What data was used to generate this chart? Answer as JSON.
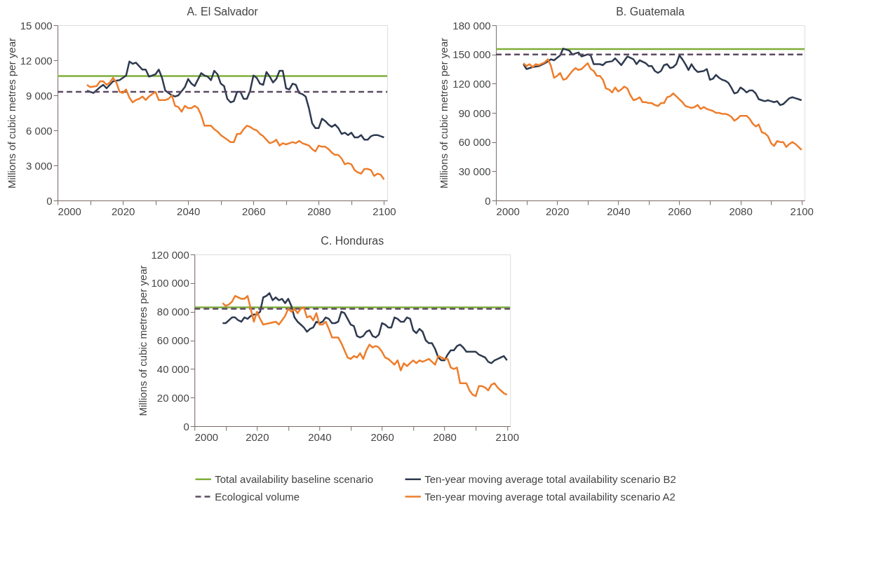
{
  "chart_data": [
    {
      "type": "line",
      "title": "A. El Salvador",
      "ylabel": "Millions of cubic metres per year",
      "legend": false,
      "grid": false,
      "xlim": [
        2000,
        2101
      ],
      "xticks": [
        2000,
        {
          "value": 2010,
          "label": null
        },
        2020,
        {
          "value": 2030,
          "label": null
        },
        2040,
        {
          "value": 2050,
          "label": null
        },
        2060,
        {
          "value": 2070,
          "label": null
        },
        2080,
        {
          "value": 2090,
          "label": null
        },
        2100
      ],
      "ylim": [
        0,
        15000
      ],
      "yticks": [
        0,
        {
          "value": 3000,
          "label": "3 000"
        },
        {
          "value": 6000,
          "label": "6 000"
        },
        {
          "value": 9000,
          "label": "9 000"
        },
        {
          "value": 12000,
          "label": "12 000"
        },
        {
          "value": 15000,
          "label": "15 000"
        }
      ],
      "series": [
        {
          "color": "#7fae3a",
          "line_style": "solid",
          "x": [
            2000,
            2101
          ],
          "values": [
            10650,
            10650
          ]
        },
        {
          "color": "#2e3a4f",
          "line_style": "solid",
          "x": [
            2009,
            2011,
            2013,
            2014,
            2015,
            2017,
            2019,
            2021,
            2022,
            2023,
            2024,
            2026,
            2027,
            2028,
            2030,
            2031,
            2032,
            2033,
            2035,
            2036,
            2037,
            2039,
            2040,
            2041,
            2042,
            2044,
            2045,
            2046,
            2047,
            2048,
            2049,
            2050,
            2051,
            2052,
            2053,
            2054,
            2055,
            2056,
            2057,
            2058,
            2059,
            2060,
            2061,
            2062,
            2063,
            2064,
            2065,
            2066,
            2067,
            2068,
            2069,
            2070,
            2071,
            2072,
            2073,
            2074,
            2075,
            2076,
            2077,
            2078,
            2079,
            2080,
            2081,
            2082,
            2083,
            2084,
            2085,
            2086,
            2087,
            2088,
            2089,
            2090,
            2091,
            2092,
            2093,
            2094,
            2095,
            2096,
            2097,
            2098,
            2099,
            2100
          ],
          "values": [
            9400,
            9200,
            9700,
            9900,
            9600,
            10200,
            10300,
            10700,
            11900,
            11700,
            11800,
            11200,
            11200,
            10600,
            10800,
            11200,
            10500,
            9400,
            9000,
            8900,
            9000,
            9700,
            10400,
            10000,
            9800,
            10900,
            10700,
            10600,
            10300,
            11100,
            10800,
            10000,
            9800,
            8700,
            8400,
            8500,
            9300,
            9300,
            8700,
            8700,
            9400,
            10700,
            10500,
            10000,
            9900,
            11000,
            10600,
            10100,
            10400,
            11100,
            11100,
            9600,
            9500,
            10000,
            9900,
            9200,
            9100,
            8900,
            7900,
            6600,
            6200,
            6200,
            7000,
            6800,
            6500,
            6300,
            6500,
            6200,
            5700,
            5800,
            5600,
            5800,
            5400,
            5400,
            5600,
            5200,
            5200,
            5500,
            5600,
            5600,
            5500,
            5400
          ]
        },
        {
          "color": "#5d4a63",
          "line_style": "dashed",
          "x": [
            2000,
            2101
          ],
          "values": [
            9300,
            9300
          ]
        },
        {
          "color": "#ee7d2b",
          "line_style": "solid",
          "x": [
            2009,
            2010,
            2012,
            2013,
            2014,
            2015,
            2016,
            2017,
            2018,
            2019,
            2020,
            2021,
            2022,
            2023,
            2024,
            2025,
            2026,
            2027,
            2028,
            2029,
            2030,
            2031,
            2032,
            2033,
            2034,
            2035,
            2036,
            2037,
            2038,
            2039,
            2040,
            2041,
            2042,
            2043,
            2044,
            2045,
            2046,
            2047,
            2048,
            2049,
            2050,
            2051,
            2052,
            2053,
            2054,
            2055,
            2056,
            2057,
            2058,
            2059,
            2060,
            2061,
            2062,
            2063,
            2064,
            2065,
            2066,
            2067,
            2068,
            2069,
            2070,
            2071,
            2072,
            2073,
            2074,
            2075,
            2076,
            2077,
            2078,
            2079,
            2080,
            2081,
            2082,
            2083,
            2084,
            2085,
            2086,
            2087,
            2088,
            2089,
            2090,
            2091,
            2092,
            2093,
            2094,
            2095,
            2096,
            2097,
            2098,
            2099,
            2100
          ],
          "values": [
            9900,
            9700,
            9800,
            10200,
            10200,
            9900,
            10100,
            10500,
            10100,
            9300,
            9200,
            9500,
            8800,
            8400,
            8600,
            8700,
            8900,
            8600,
            8900,
            9100,
            9300,
            8600,
            8600,
            8600,
            8700,
            9000,
            8100,
            8000,
            7600,
            8100,
            7900,
            7900,
            8100,
            7900,
            7300,
            6400,
            6400,
            6400,
            6100,
            5900,
            5600,
            5400,
            5200,
            5000,
            5000,
            5700,
            5700,
            6100,
            6400,
            6300,
            6100,
            6000,
            5700,
            5500,
            5200,
            4900,
            5000,
            5200,
            4700,
            4900,
            4800,
            4900,
            5000,
            4900,
            5100,
            4900,
            4800,
            4700,
            4400,
            4200,
            4700,
            4600,
            4600,
            4400,
            4100,
            3900,
            3900,
            3600,
            3100,
            3200,
            3100,
            2600,
            2400,
            2300,
            2700,
            2700,
            2600,
            2100,
            2300,
            2200,
            1800
          ]
        }
      ]
    },
    {
      "type": "line",
      "title": "B. Guatemala",
      "ylabel": "Millions of cubic metres per year",
      "legend": false,
      "grid": false,
      "xlim": [
        2000,
        2101
      ],
      "xticks": [
        2000,
        {
          "value": 2010,
          "label": null
        },
        2020,
        {
          "value": 2030,
          "label": null
        },
        2040,
        {
          "value": 2050,
          "label": null
        },
        2060,
        {
          "value": 2070,
          "label": null
        },
        2080,
        {
          "value": 2090,
          "label": null
        },
        2100
      ],
      "ylim": [
        0,
        180000
      ],
      "yticks": [
        0,
        {
          "value": 30000,
          "label": "30 000"
        },
        {
          "value": 60000,
          "label": "60 000"
        },
        {
          "value": 90000,
          "label": "90 000"
        },
        {
          "value": 120000,
          "label": "120 000"
        },
        {
          "value": 150000,
          "label": "150 000"
        },
        {
          "value": 180000,
          "label": "180 000"
        }
      ],
      "series": [
        {
          "color": "#7fae3a",
          "line_style": "solid",
          "x": [
            2000,
            2101
          ],
          "values": [
            155500,
            155500
          ]
        },
        {
          "color": "#2e3a4f",
          "line_style": "solid",
          "x": [
            2009,
            2010,
            2012,
            2014,
            2016,
            2018,
            2019,
            2021,
            2022,
            2024,
            2025,
            2027,
            2028,
            2030,
            2031,
            2032,
            2034,
            2035,
            2036,
            2038,
            2039,
            2041,
            2043,
            2045,
            2046,
            2047,
            2049,
            2050,
            2051,
            2052,
            2053,
            2054,
            2055,
            2056,
            2057,
            2058,
            2059,
            2060,
            2061,
            2062,
            2063,
            2064,
            2065,
            2066,
            2068,
            2069,
            2070,
            2071,
            2072,
            2073,
            2074,
            2075,
            2076,
            2077,
            2078,
            2079,
            2080,
            2081,
            2082,
            2083,
            2084,
            2085,
            2086,
            2087,
            2088,
            2089,
            2090,
            2091,
            2092,
            2093,
            2094,
            2095,
            2096,
            2097,
            2098,
            2099,
            2100
          ],
          "values": [
            140000,
            135000,
            137000,
            138000,
            141000,
            145000,
            144000,
            149000,
            156000,
            154000,
            150000,
            152000,
            148000,
            150000,
            149000,
            140000,
            140000,
            139000,
            142000,
            143000,
            146000,
            139000,
            148000,
            145000,
            140000,
            144000,
            141000,
            138000,
            138000,
            133000,
            131000,
            133000,
            139000,
            140000,
            136000,
            137000,
            140000,
            149000,
            145000,
            140000,
            134000,
            140000,
            135000,
            132000,
            133000,
            135000,
            124000,
            125000,
            129000,
            126000,
            124000,
            123000,
            121000,
            116000,
            110000,
            111000,
            116000,
            114000,
            111000,
            113000,
            113000,
            110000,
            104000,
            103000,
            102000,
            103000,
            102000,
            101000,
            102000,
            98000,
            99000,
            102000,
            105000,
            106000,
            105000,
            104000,
            103000
          ]
        },
        {
          "color": "#5d4a63",
          "line_style": "dashed",
          "x": [
            2000,
            2101
          ],
          "values": [
            150000,
            150000
          ]
        },
        {
          "color": "#ee7d2b",
          "line_style": "solid",
          "x": [
            2009,
            2010,
            2011,
            2012,
            2013,
            2014,
            2016,
            2017,
            2018,
            2019,
            2020,
            2021,
            2022,
            2023,
            2024,
            2025,
            2026,
            2027,
            2028,
            2029,
            2030,
            2031,
            2032,
            2033,
            2034,
            2035,
            2036,
            2037,
            2038,
            2039,
            2040,
            2041,
            2042,
            2043,
            2044,
            2045,
            2046,
            2047,
            2048,
            2049,
            2050,
            2051,
            2052,
            2053,
            2054,
            2055,
            2056,
            2057,
            2058,
            2059,
            2060,
            2061,
            2062,
            2063,
            2064,
            2065,
            2066,
            2067,
            2068,
            2069,
            2070,
            2071,
            2072,
            2073,
            2074,
            2075,
            2076,
            2077,
            2078,
            2079,
            2080,
            2081,
            2082,
            2083,
            2084,
            2085,
            2086,
            2087,
            2088,
            2089,
            2090,
            2091,
            2092,
            2093,
            2094,
            2095,
            2096,
            2097,
            2098,
            2099,
            2100
          ],
          "values": [
            141000,
            138000,
            140000,
            137000,
            140000,
            139000,
            142000,
            145000,
            138000,
            126000,
            128000,
            131000,
            124000,
            125000,
            129000,
            133000,
            136000,
            134000,
            135000,
            138000,
            141000,
            135000,
            133000,
            128000,
            128000,
            124000,
            115000,
            114000,
            111000,
            116000,
            112000,
            114000,
            117000,
            115000,
            108000,
            103000,
            104000,
            106000,
            101000,
            101000,
            100000,
            100000,
            98000,
            97000,
            100000,
            100000,
            106000,
            107000,
            110000,
            107000,
            104000,
            101000,
            97000,
            96000,
            95000,
            96000,
            98000,
            94000,
            96000,
            94000,
            93000,
            92000,
            90000,
            90000,
            89000,
            89000,
            88000,
            86000,
            82000,
            84000,
            87000,
            87000,
            87000,
            84000,
            79000,
            76000,
            78000,
            70000,
            69000,
            66000,
            59000,
            56000,
            61000,
            60000,
            60000,
            55000,
            58000,
            60000,
            58000,
            55000,
            52000
          ]
        }
      ]
    },
    {
      "type": "line",
      "title": "C. Honduras",
      "ylabel": "Millions of cubic metres per year",
      "legend": "bottom",
      "grid": false,
      "xlim": [
        2000,
        2101
      ],
      "xticks": [
        2000,
        {
          "value": 2010,
          "label": null
        },
        2020,
        {
          "value": 2030,
          "label": null
        },
        2040,
        {
          "value": 2050,
          "label": null
        },
        2060,
        {
          "value": 2070,
          "label": null
        },
        2080,
        {
          "value": 2090,
          "label": null
        },
        2100
      ],
      "ylim": [
        0,
        120000
      ],
      "yticks": [
        0,
        {
          "value": 20000,
          "label": "20 000"
        },
        {
          "value": 40000,
          "label": "40 000"
        },
        {
          "value": 60000,
          "label": "60 000"
        },
        {
          "value": 80000,
          "label": "80 000"
        },
        {
          "value": 100000,
          "label": "100 000"
        },
        {
          "value": 120000,
          "label": "120 000"
        }
      ],
      "series": [
        {
          "name": "Total availability baseline scenario",
          "color": "#7fae3a",
          "line_style": "solid",
          "x": [
            2000,
            2101
          ],
          "values": [
            83000,
            83000
          ]
        },
        {
          "name": "Ten-year moving average total availability scenario B2",
          "color": "#2e3a4f",
          "line_style": "solid",
          "x": [
            2009,
            2010,
            2012,
            2013,
            2014,
            2015,
            2016,
            2017,
            2018,
            2019,
            2020,
            2021,
            2022,
            2023,
            2024,
            2025,
            2026,
            2027,
            2028,
            2029,
            2030,
            2031,
            2032,
            2033,
            2034,
            2035,
            2036,
            2037,
            2038,
            2039,
            2040,
            2041,
            2042,
            2043,
            2044,
            2045,
            2046,
            2047,
            2048,
            2049,
            2050,
            2051,
            2052,
            2053,
            2054,
            2055,
            2056,
            2057,
            2058,
            2059,
            2060,
            2061,
            2062,
            2063,
            2064,
            2065,
            2066,
            2067,
            2068,
            2069,
            2070,
            2071,
            2072,
            2073,
            2074,
            2075,
            2076,
            2077,
            2078,
            2079,
            2080,
            2081,
            2082,
            2083,
            2084,
            2085,
            2086,
            2087,
            2088,
            2089,
            2090,
            2091,
            2092,
            2093,
            2094,
            2095,
            2096,
            2097,
            2098,
            2099,
            2100
          ],
          "values": [
            72000,
            72000,
            76000,
            76000,
            74000,
            73000,
            76000,
            75000,
            77000,
            78000,
            78000,
            80000,
            90000,
            91000,
            93000,
            88000,
            90000,
            88000,
            89000,
            86000,
            89000,
            84000,
            76000,
            73000,
            71000,
            69000,
            66000,
            68000,
            69000,
            73000,
            72000,
            73000,
            76000,
            75000,
            72000,
            72000,
            73000,
            80000,
            79000,
            75000,
            71000,
            70000,
            63000,
            62000,
            63000,
            66000,
            67000,
            63000,
            62000,
            64000,
            72000,
            71000,
            69000,
            69000,
            76000,
            75000,
            73000,
            73000,
            76000,
            75000,
            67000,
            65000,
            68000,
            66000,
            60000,
            58000,
            58000,
            54000,
            48000,
            46000,
            46000,
            50000,
            53000,
            53000,
            56000,
            57000,
            55000,
            52000,
            52000,
            52000,
            52000,
            50000,
            49000,
            48000,
            45000,
            44000,
            46000,
            47000,
            48000,
            49000,
            46000
          ]
        },
        {
          "name": "Ecological volume",
          "color": "#5d4a63",
          "line_style": "dashed",
          "x": [
            2000,
            2101
          ],
          "values": [
            82000,
            82000
          ]
        },
        {
          "name": "Ten-year moving average total availability scenario A2",
          "color": "#ee7d2b",
          "line_style": "solid",
          "x": [
            2009,
            2010,
            2011,
            2012,
            2013,
            2014,
            2015,
            2016,
            2017,
            2018,
            2019,
            2020,
            2021,
            2022,
            2024,
            2026,
            2027,
            2028,
            2029,
            2030,
            2031,
            2032,
            2033,
            2034,
            2035,
            2036,
            2037,
            2038,
            2039,
            2040,
            2041,
            2042,
            2043,
            2044,
            2045,
            2046,
            2047,
            2048,
            2049,
            2050,
            2051,
            2052,
            2053,
            2054,
            2055,
            2056,
            2057,
            2058,
            2059,
            2060,
            2061,
            2062,
            2063,
            2064,
            2065,
            2066,
            2067,
            2068,
            2069,
            2070,
            2071,
            2072,
            2073,
            2074,
            2075,
            2076,
            2077,
            2078,
            2079,
            2080,
            2081,
            2082,
            2083,
            2084,
            2085,
            2086,
            2087,
            2088,
            2089,
            2090,
            2091,
            2092,
            2093,
            2094,
            2095,
            2096,
            2097,
            2098,
            2099,
            2100
          ],
          "values": [
            86000,
            84000,
            85000,
            87000,
            91000,
            90000,
            89000,
            89000,
            91000,
            82000,
            73000,
            80000,
            75000,
            71000,
            72000,
            73000,
            71000,
            74000,
            77000,
            82000,
            80000,
            82000,
            79000,
            82000,
            83000,
            76000,
            77000,
            74000,
            79000,
            71000,
            71000,
            73000,
            68000,
            62000,
            62000,
            62000,
            58000,
            53000,
            48000,
            47000,
            49000,
            48000,
            51000,
            47000,
            53000,
            57000,
            55000,
            56000,
            55000,
            52000,
            48000,
            47000,
            45000,
            43000,
            46000,
            39000,
            44000,
            42000,
            44000,
            46000,
            44000,
            46000,
            45000,
            46000,
            47000,
            45000,
            43000,
            49000,
            48000,
            47000,
            47000,
            41000,
            40000,
            41000,
            30000,
            30000,
            30000,
            25000,
            22000,
            21000,
            28000,
            28000,
            27000,
            25000,
            29000,
            30000,
            27000,
            25000,
            23000,
            22000
          ]
        }
      ]
    }
  ]
}
